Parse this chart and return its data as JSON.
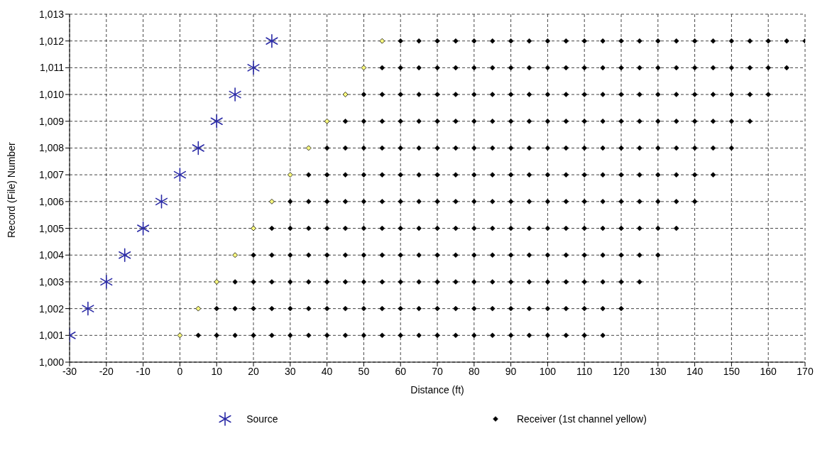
{
  "chart_data": {
    "type": "scatter",
    "xlabel": "Distance (ft)",
    "ylabel": "Record (File) Number",
    "xlim": [
      -30,
      170
    ],
    "xticks": [
      -30,
      -20,
      -10,
      0,
      10,
      20,
      30,
      40,
      50,
      60,
      70,
      80,
      90,
      100,
      110,
      120,
      130,
      140,
      150,
      160,
      170
    ],
    "ylim": [
      1000,
      1013
    ],
    "yticks": [
      {
        "value": 1000,
        "label": "1,000"
      },
      {
        "value": 1001,
        "label": "1,001"
      },
      {
        "value": 1002,
        "label": "1,002"
      },
      {
        "value": 1003,
        "label": "1,003"
      },
      {
        "value": 1004,
        "label": "1,004"
      },
      {
        "value": 1005,
        "label": "1,005"
      },
      {
        "value": 1006,
        "label": "1,006"
      },
      {
        "value": 1007,
        "label": "1,007"
      },
      {
        "value": 1008,
        "label": "1,008"
      },
      {
        "value": 1009,
        "label": "1,009"
      },
      {
        "value": 1010,
        "label": "1,010"
      },
      {
        "value": 1011,
        "label": "1,011"
      },
      {
        "value": 1012,
        "label": "1,012"
      },
      {
        "value": 1013,
        "label": "1,013"
      }
    ],
    "grid": true,
    "line_style": "dashed",
    "legend": "bottom",
    "series": [
      {
        "name": "Source",
        "color": "#2a2aa6",
        "marker": "cross",
        "x": [
          -30,
          -25,
          -20,
          -15,
          -10,
          -5,
          0,
          5,
          10,
          15,
          20,
          25
        ],
        "values": [
          1001,
          1002,
          1003,
          1004,
          1005,
          1006,
          1007,
          1008,
          1009,
          1010,
          1011,
          1012
        ]
      },
      {
        "name": "Receiver (1st channel yellow)",
        "color": "#000000",
        "marker": "diamond",
        "x": [
          5,
          10,
          15,
          20,
          25,
          30,
          35,
          40,
          45,
          50,
          55,
          60,
          65,
          70,
          75,
          80,
          85,
          90,
          95,
          100,
          105,
          110,
          115,
          10,
          15,
          20,
          25,
          30,
          35,
          40,
          45,
          50,
          55,
          60,
          65,
          70,
          75,
          80,
          85,
          90,
          95,
          100,
          105,
          110,
          115,
          120,
          15,
          20,
          25,
          30,
          35,
          40,
          45,
          50,
          55,
          60,
          65,
          70,
          75,
          80,
          85,
          90,
          95,
          100,
          105,
          110,
          115,
          120,
          125,
          20,
          25,
          30,
          35,
          40,
          45,
          50,
          55,
          60,
          65,
          70,
          75,
          80,
          85,
          90,
          95,
          100,
          105,
          110,
          115,
          120,
          125,
          130,
          25,
          30,
          35,
          40,
          45,
          50,
          55,
          60,
          65,
          70,
          75,
          80,
          85,
          90,
          95,
          100,
          105,
          110,
          115,
          120,
          125,
          130,
          135,
          30,
          35,
          40,
          45,
          50,
          55,
          60,
          65,
          70,
          75,
          80,
          85,
          90,
          95,
          100,
          105,
          110,
          115,
          120,
          125,
          130,
          135,
          140,
          35,
          40,
          45,
          50,
          55,
          60,
          65,
          70,
          75,
          80,
          85,
          90,
          95,
          100,
          105,
          110,
          115,
          120,
          125,
          130,
          135,
          140,
          145,
          40,
          45,
          50,
          55,
          60,
          65,
          70,
          75,
          80,
          85,
          90,
          95,
          100,
          105,
          110,
          115,
          120,
          125,
          130,
          135,
          140,
          145,
          150,
          45,
          50,
          55,
          60,
          65,
          70,
          75,
          80,
          85,
          90,
          95,
          100,
          105,
          110,
          115,
          120,
          125,
          130,
          135,
          140,
          145,
          150,
          155,
          50,
          55,
          60,
          65,
          70,
          75,
          80,
          85,
          90,
          95,
          100,
          105,
          110,
          115,
          120,
          125,
          130,
          135,
          140,
          145,
          150,
          155,
          160,
          55,
          60,
          65,
          70,
          75,
          80,
          85,
          90,
          95,
          100,
          105,
          110,
          115,
          120,
          125,
          130,
          135,
          140,
          145,
          150,
          155,
          160,
          165,
          60,
          65,
          70,
          75,
          80,
          85,
          90,
          95,
          100,
          105,
          110,
          115,
          120,
          125,
          130,
          135,
          140,
          145,
          150,
          155,
          160,
          165,
          170
        ],
        "values": [
          1001,
          1001,
          1001,
          1001,
          1001,
          1001,
          1001,
          1001,
          1001,
          1001,
          1001,
          1001,
          1001,
          1001,
          1001,
          1001,
          1001,
          1001,
          1001,
          1001,
          1001,
          1001,
          1001,
          1002,
          1002,
          1002,
          1002,
          1002,
          1002,
          1002,
          1002,
          1002,
          1002,
          1002,
          1002,
          1002,
          1002,
          1002,
          1002,
          1002,
          1002,
          1002,
          1002,
          1002,
          1002,
          1002,
          1003,
          1003,
          1003,
          1003,
          1003,
          1003,
          1003,
          1003,
          1003,
          1003,
          1003,
          1003,
          1003,
          1003,
          1003,
          1003,
          1003,
          1003,
          1003,
          1003,
          1003,
          1003,
          1003,
          1004,
          1004,
          1004,
          1004,
          1004,
          1004,
          1004,
          1004,
          1004,
          1004,
          1004,
          1004,
          1004,
          1004,
          1004,
          1004,
          1004,
          1004,
          1004,
          1004,
          1004,
          1004,
          1004,
          1005,
          1005,
          1005,
          1005,
          1005,
          1005,
          1005,
          1005,
          1005,
          1005,
          1005,
          1005,
          1005,
          1005,
          1005,
          1005,
          1005,
          1005,
          1005,
          1005,
          1005,
          1005,
          1005,
          1006,
          1006,
          1006,
          1006,
          1006,
          1006,
          1006,
          1006,
          1006,
          1006,
          1006,
          1006,
          1006,
          1006,
          1006,
          1006,
          1006,
          1006,
          1006,
          1006,
          1006,
          1006,
          1006,
          1007,
          1007,
          1007,
          1007,
          1007,
          1007,
          1007,
          1007,
          1007,
          1007,
          1007,
          1007,
          1007,
          1007,
          1007,
          1007,
          1007,
          1007,
          1007,
          1007,
          1007,
          1007,
          1007,
          1008,
          1008,
          1008,
          1008,
          1008,
          1008,
          1008,
          1008,
          1008,
          1008,
          1008,
          1008,
          1008,
          1008,
          1008,
          1008,
          1008,
          1008,
          1008,
          1008,
          1008,
          1008,
          1008,
          1009,
          1009,
          1009,
          1009,
          1009,
          1009,
          1009,
          1009,
          1009,
          1009,
          1009,
          1009,
          1009,
          1009,
          1009,
          1009,
          1009,
          1009,
          1009,
          1009,
          1009,
          1009,
          1009,
          1010,
          1010,
          1010,
          1010,
          1010,
          1010,
          1010,
          1010,
          1010,
          1010,
          1010,
          1010,
          1010,
          1010,
          1010,
          1010,
          1010,
          1010,
          1010,
          1010,
          1010,
          1010,
          1010,
          1011,
          1011,
          1011,
          1011,
          1011,
          1011,
          1011,
          1011,
          1011,
          1011,
          1011,
          1011,
          1011,
          1011,
          1011,
          1011,
          1011,
          1011,
          1011,
          1011,
          1011,
          1011,
          1011,
          1012,
          1012,
          1012,
          1012,
          1012,
          1012,
          1012,
          1012,
          1012,
          1012,
          1012,
          1012,
          1012,
          1012,
          1012,
          1012,
          1012,
          1012,
          1012,
          1012,
          1012,
          1012,
          1012
        ]
      },
      {
        "color": "#ffff80",
        "marker": "diamond",
        "x": [
          0,
          5,
          10,
          15,
          20,
          25,
          30,
          35,
          40,
          45,
          50,
          55
        ],
        "values": [
          1001,
          1002,
          1003,
          1004,
          1005,
          1006,
          1007,
          1008,
          1009,
          1010,
          1011,
          1012
        ]
      }
    ]
  }
}
